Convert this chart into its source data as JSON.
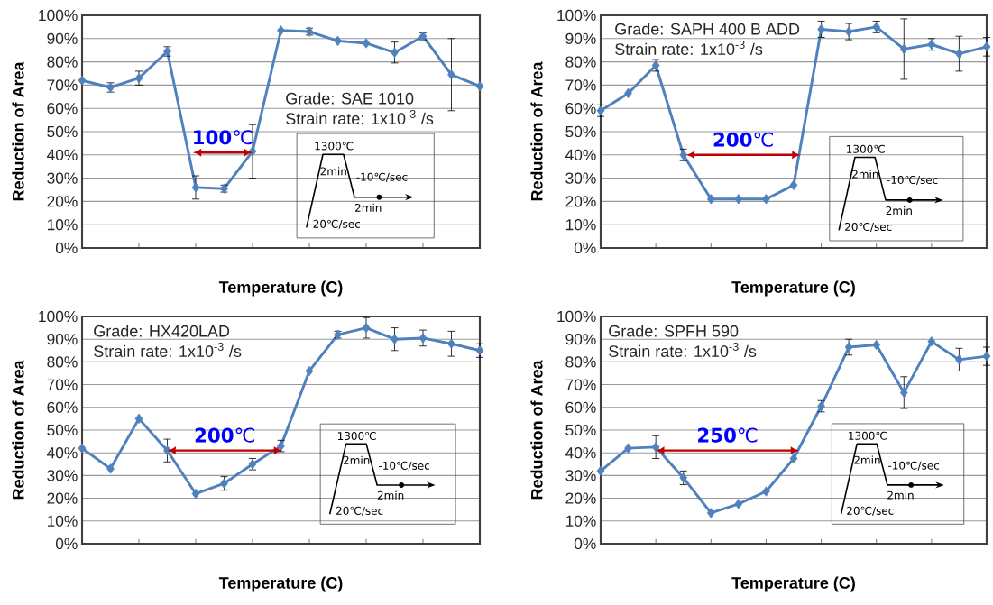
{
  "chart_data": [
    {
      "type": "line",
      "xlabel": "Temperature (C)",
      "ylabel": "Reduction of Area",
      "color": "#4f81bd",
      "marker": "diamond",
      "grid": "y",
      "categories": [
        null,
        null,
        null,
        null,
        null,
        null,
        null,
        null,
        null,
        null,
        null,
        null,
        null,
        null,
        null
      ],
      "values": [
        72,
        69,
        73,
        84.5,
        26,
        25.5,
        41.5,
        93.5,
        93,
        89,
        88,
        84,
        91,
        74.5,
        69.5
      ],
      "errors": [
        null,
        2,
        3,
        2,
        5,
        1.5,
        11.5,
        null,
        1.5,
        null,
        null,
        4.5,
        1.5,
        15.5,
        null
      ],
      "ylim": [
        0,
        100
      ],
      "yticks": [
        {
          "value": 0,
          "label": "0%"
        },
        {
          "value": 10,
          "label": "10%"
        },
        {
          "value": 20,
          "label": "20%"
        },
        {
          "value": 30,
          "label": "30%"
        },
        {
          "value": 40,
          "label": "40%"
        },
        {
          "value": 50,
          "label": "50%"
        },
        {
          "value": 60,
          "label": "60%"
        },
        {
          "value": 70,
          "label": "70%"
        },
        {
          "value": 80,
          "label": "80%"
        },
        {
          "value": 90,
          "label": "90%"
        },
        {
          "value": 100,
          "label": "100%"
        }
      ],
      "annotations": [
        "Grade: SAE 1010",
        "Strain rate: 1x10$^{-3}$ /s",
        "**100**℃",
        "1300℃",
        "2min",
        "-10℃/sec",
        "2min",
        "20℃/sec"
      ]
    },
    {
      "type": "line",
      "xlabel": "Temperature (C)",
      "ylabel": "Reduction of Area",
      "color": "#4f81bd",
      "marker": "diamond",
      "grid": "y",
      "categories": [
        null,
        null,
        null,
        null,
        null,
        null,
        null,
        null,
        null,
        null,
        null,
        null,
        null,
        null,
        null
      ],
      "values": [
        59,
        66.5,
        78.5,
        40,
        21,
        21,
        21,
        27,
        94,
        93,
        95,
        85.5,
        87.5,
        83.5,
        86.5
      ],
      "errors": [
        2.5,
        null,
        2.5,
        2.5,
        null,
        null,
        null,
        null,
        3.5,
        3.5,
        2.5,
        13,
        2.5,
        7.5,
        4
      ],
      "ylim": [
        0,
        100
      ],
      "yticks": [
        {
          "value": 0,
          "label": "0%"
        },
        {
          "value": 10,
          "label": "10%"
        },
        {
          "value": 20,
          "label": "20%"
        },
        {
          "value": 30,
          "label": "30%"
        },
        {
          "value": 40,
          "label": "40%"
        },
        {
          "value": 50,
          "label": "50%"
        },
        {
          "value": 60,
          "label": "60%"
        },
        {
          "value": 70,
          "label": "70%"
        },
        {
          "value": 80,
          "label": "80%"
        },
        {
          "value": 90,
          "label": "90%"
        },
        {
          "value": 100,
          "label": "100%"
        }
      ],
      "annotations": [
        "Grade: SAPH 400 B ADD",
        "Strain rate: 1x10$^{-3}$ /s",
        "**200**℃",
        "1300℃",
        "2min",
        "-10℃/sec",
        "2min",
        "20℃/sec"
      ]
    },
    {
      "type": "line",
      "xlabel": "Temperature (C)",
      "ylabel": "Reduction of Area",
      "color": "#4f81bd",
      "marker": "diamond",
      "grid": "y",
      "categories": [
        null,
        null,
        null,
        null,
        null,
        null,
        null,
        null,
        null,
        null,
        null,
        null,
        null,
        null,
        null
      ],
      "values": [
        42,
        33,
        55,
        41,
        22,
        26.5,
        35,
        43,
        76,
        92,
        95,
        90,
        90.5,
        88,
        85
      ],
      "errors": [
        null,
        null,
        null,
        5,
        null,
        3,
        2.5,
        2.5,
        null,
        1.5,
        4.5,
        5,
        3.5,
        5.5,
        3
      ],
      "ylim": [
        0,
        100
      ],
      "yticks": [
        {
          "value": 0,
          "label": "0%"
        },
        {
          "value": 10,
          "label": "10%"
        },
        {
          "value": 20,
          "label": "20%"
        },
        {
          "value": 30,
          "label": "30%"
        },
        {
          "value": 40,
          "label": "40%"
        },
        {
          "value": 50,
          "label": "50%"
        },
        {
          "value": 60,
          "label": "60%"
        },
        {
          "value": 70,
          "label": "70%"
        },
        {
          "value": 80,
          "label": "80%"
        },
        {
          "value": 90,
          "label": "90%"
        },
        {
          "value": 100,
          "label": "100%"
        }
      ],
      "annotations": [
        "Grade: HX420LAD",
        "Strain rate: 1x10$^{-3}$ /s",
        "**200**℃",
        "1300℃",
        "2min",
        "-10℃/sec",
        "2min",
        "20℃/sec"
      ]
    },
    {
      "type": "line",
      "xlabel": "Temperature (C)",
      "ylabel": "Reduction of Area",
      "color": "#4f81bd",
      "marker": "diamond",
      "grid": "y",
      "categories": [
        null,
        null,
        null,
        null,
        null,
        null,
        null,
        null,
        null,
        null,
        null,
        null,
        null,
        null,
        null
      ],
      "values": [
        32,
        42,
        42.5,
        29,
        13.5,
        17.5,
        23,
        37.5,
        60.5,
        86.5,
        87.5,
        66.5,
        89,
        81,
        82.5
      ],
      "errors": [
        null,
        null,
        5,
        3,
        null,
        null,
        null,
        null,
        2.5,
        3.5,
        null,
        7,
        null,
        5,
        4
      ],
      "ylim": [
        0,
        100
      ],
      "yticks": [
        {
          "value": 0,
          "label": "0%"
        },
        {
          "value": 10,
          "label": "10%"
        },
        {
          "value": 20,
          "label": "20%"
        },
        {
          "value": 30,
          "label": "30%"
        },
        {
          "value": 40,
          "label": "40%"
        },
        {
          "value": 50,
          "label": "50%"
        },
        {
          "value": 60,
          "label": "60%"
        },
        {
          "value": 70,
          "label": "70%"
        },
        {
          "value": 80,
          "label": "80%"
        },
        {
          "value": 90,
          "label": "90%"
        },
        {
          "value": 100,
          "label": "100%"
        }
      ],
      "annotations": [
        "Grade: SPFH 590",
        "Strain rate: 1x10$^{-3}$ /s",
        "**250**℃",
        "1300℃",
        "2min",
        "-10℃/sec",
        "2min",
        "20℃/sec"
      ]
    }
  ]
}
